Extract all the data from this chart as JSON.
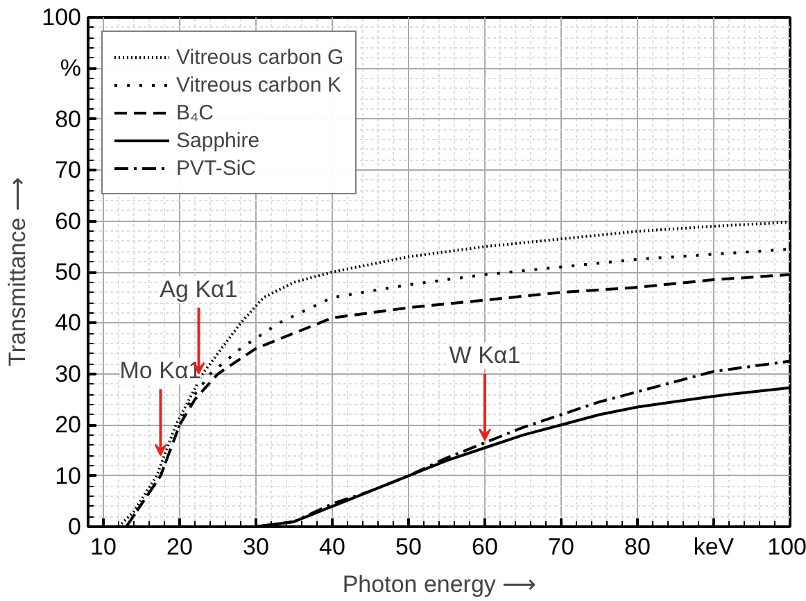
{
  "chart_data": {
    "type": "line",
    "xlabel": "Photon energy ⟶",
    "ylabel": "Transmittance ⟶",
    "xlim": [
      8,
      100
    ],
    "ylim": [
      0,
      100
    ],
    "xticks": [
      10,
      20,
      30,
      40,
      50,
      60,
      70,
      80,
      {
        "value": 90,
        "label": "keV"
      },
      100
    ],
    "yticks": [
      0,
      10,
      20,
      30,
      40,
      50,
      60,
      70,
      80,
      {
        "value": 90,
        "label": "%"
      },
      100
    ],
    "grid": true,
    "legend": "top left",
    "annotations": [
      {
        "text": "Mo Kα1",
        "x": 17.5,
        "y": 14
      },
      {
        "text": "Ag Kα1",
        "x": 22.5,
        "y": 30
      },
      {
        "text": "W Kα1",
        "x": 60,
        "y": 17
      }
    ],
    "series": [
      {
        "name": "Vitreous carbon G",
        "color": "#000000",
        "line_style": "dotted",
        "x": [
          12,
          14,
          17,
          19.5,
          23,
          28,
          31,
          35,
          40,
          50,
          60,
          70,
          80,
          90,
          100
        ],
        "values": [
          0,
          3,
          10,
          20,
          30,
          40,
          45,
          48,
          50,
          53,
          55,
          56.5,
          58,
          59,
          59.8
        ]
      },
      {
        "name": "Vitreous carbon K",
        "color": "#000000",
        "line_style": "loosely dotted",
        "x": [
          13,
          17.5,
          20,
          21.5,
          24,
          28,
          33,
          40,
          50,
          60,
          70,
          80,
          90,
          100
        ],
        "values": [
          0,
          10,
          20,
          25,
          30,
          35,
          40,
          45,
          47.5,
          49.5,
          51,
          52.5,
          53.5,
          54.5
        ]
      },
      {
        "name": "B₄C",
        "color": "#000000",
        "line_style": "dashed",
        "x": [
          13,
          17.5,
          20,
          22,
          25,
          30,
          35,
          40,
          50,
          60,
          70,
          80,
          90,
          100
        ],
        "values": [
          0,
          10,
          20,
          25,
          30,
          35,
          38,
          41,
          43,
          44.5,
          46,
          47,
          48.5,
          49.5
        ]
      },
      {
        "name": "Sapphire",
        "color": "#000000",
        "line_style": "solid",
        "x": [
          30,
          35,
          40,
          45,
          50,
          55,
          60,
          65,
          70,
          75,
          80,
          87,
          92,
          100
        ],
        "values": [
          0,
          1,
          4,
          7,
          10,
          13,
          15.5,
          18,
          20,
          22,
          23.5,
          25,
          26,
          27.3
        ]
      },
      {
        "name": "PVT-SiC",
        "color": "#000000",
        "line_style": "dashdot",
        "x": [
          30,
          35,
          40,
          45,
          50,
          55,
          60,
          65,
          70,
          75,
          80,
          85,
          90,
          100
        ],
        "values": [
          0,
          1,
          4.5,
          7,
          10,
          13.5,
          16.5,
          19.5,
          22,
          24.5,
          26.5,
          28.5,
          30.5,
          32.5
        ]
      }
    ]
  }
}
